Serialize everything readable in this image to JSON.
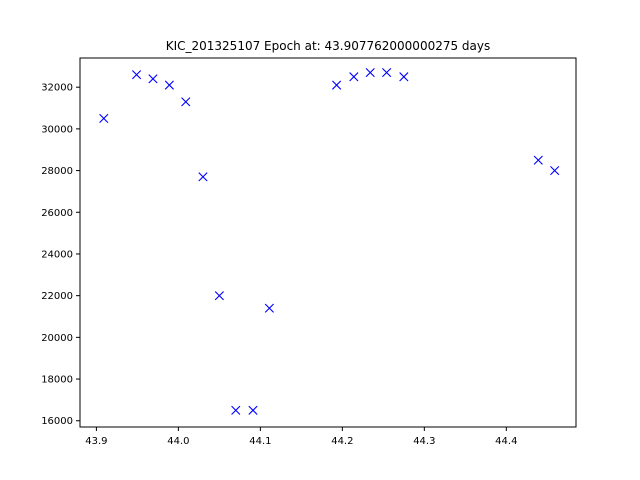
{
  "chart_data": {
    "type": "scatter",
    "title": "KIC_201325107 Epoch at: 43.907762000000275 days",
    "xlabel": "",
    "ylabel": "",
    "xlim": [
      43.88,
      44.485
    ],
    "ylim": [
      15700,
      33400
    ],
    "x_ticks": [
      {
        "value": 43.9,
        "label": "43.9"
      },
      {
        "value": 44.0,
        "label": "44.0"
      },
      {
        "value": 44.1,
        "label": "44.1"
      },
      {
        "value": 44.2,
        "label": "44.2"
      },
      {
        "value": 44.3,
        "label": "44.3"
      },
      {
        "value": 44.4,
        "label": "44.4"
      }
    ],
    "y_ticks": [
      {
        "value": 16000,
        "label": "16000"
      },
      {
        "value": 18000,
        "label": "18000"
      },
      {
        "value": 20000,
        "label": "20000"
      },
      {
        "value": 22000,
        "label": "22000"
      },
      {
        "value": 24000,
        "label": "24000"
      },
      {
        "value": 26000,
        "label": "26000"
      },
      {
        "value": 28000,
        "label": "28000"
      },
      {
        "value": 30000,
        "label": "30000"
      },
      {
        "value": 32000,
        "label": "32000"
      }
    ],
    "grid": false,
    "marker": "x",
    "color": "#0000ff",
    "series": [
      {
        "x": [
          43.909,
          43.949,
          43.969,
          43.989,
          44.009,
          44.03,
          44.05,
          44.07,
          44.091,
          44.111,
          44.193,
          44.214,
          44.234,
          44.254,
          44.275,
          44.439,
          44.459
        ],
        "y": [
          30500,
          32600,
          32400,
          32100,
          31300,
          27700,
          22000,
          16500,
          16500,
          21400,
          32100,
          32500,
          32700,
          32700,
          32500,
          28500,
          28000
        ]
      }
    ]
  }
}
